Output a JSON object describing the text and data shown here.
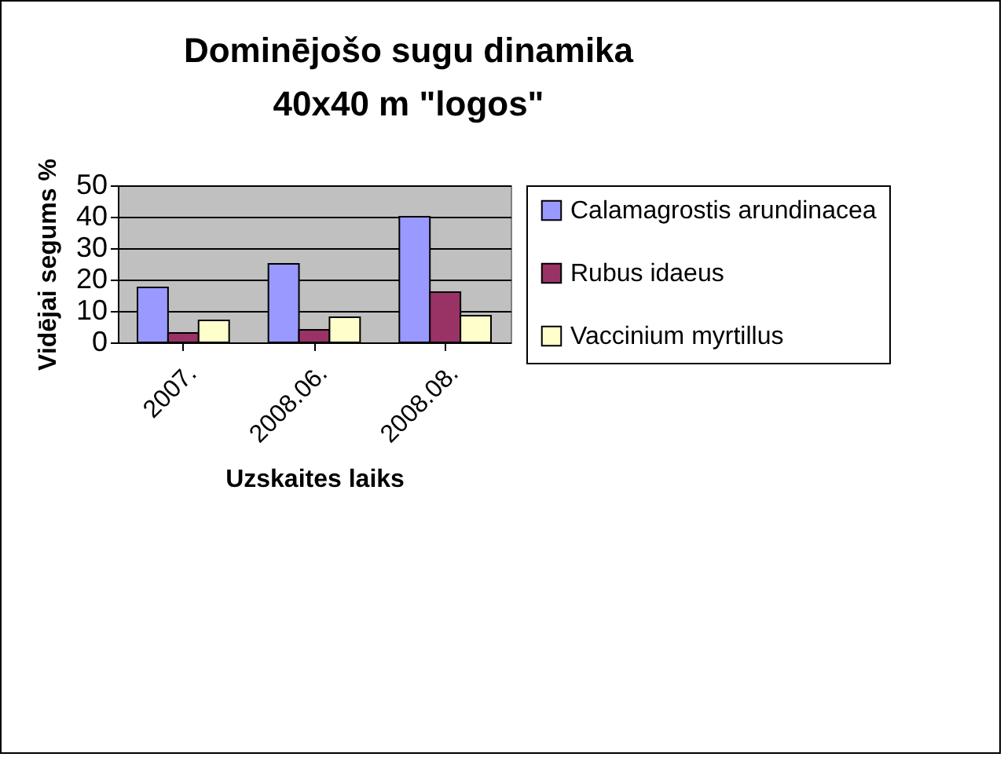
{
  "chart_data": {
    "type": "bar",
    "title": [
      "Dominējošo sugu dinamika",
      "40x40 m \"logos\""
    ],
    "xlabel": "Uzskaites laiks",
    "ylabel": "Vidējai segums %",
    "categories": [
      "2007.",
      "2008.06.",
      "2008.08."
    ],
    "series": [
      {
        "name": "Calamagrostis arundinacea",
        "color": "#9999ff",
        "values": [
          17.5,
          25,
          40
        ]
      },
      {
        "name": "Rubus idaeus",
        "color": "#993366",
        "values": [
          3,
          4,
          16
        ]
      },
      {
        "name": "Vaccinium myrtillus",
        "color": "#ffffcc",
        "values": [
          7,
          8,
          8.5
        ]
      }
    ],
    "ylim": [
      0,
      50
    ],
    "yticks": [
      0,
      10,
      20,
      30,
      40,
      50
    ],
    "grid": "y",
    "legend": "right"
  }
}
